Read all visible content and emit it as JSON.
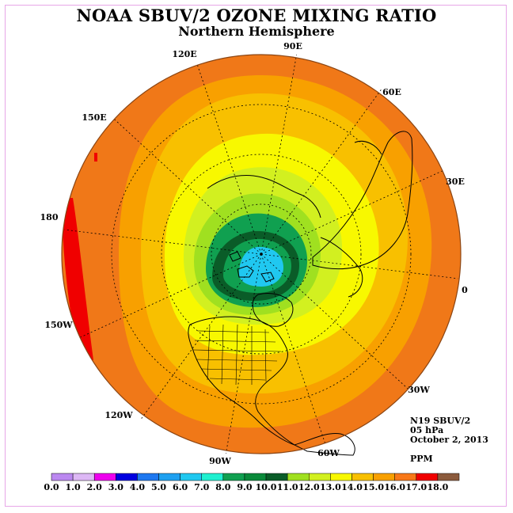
{
  "title": "NOAA SBUV/2 OZONE MIXING RATIO",
  "subtitle": "Northern Hemisphere",
  "info": {
    "instrument": "N19 SBUV/2",
    "level": "05 hPa",
    "date": "October 2, 2013",
    "units": "PPM"
  },
  "longitude_labels": [
    "90E",
    "60E",
    "30E",
    "0",
    "30W",
    "60W",
    "90W",
    "120W",
    "150W",
    "180",
    "150E",
    "120E"
  ],
  "colorbar": {
    "ticks": [
      "0.0",
      "1.0",
      "2.0",
      "3.0",
      "4.0",
      "5.0",
      "6.0",
      "7.0",
      "8.0",
      "9.0",
      "10.0",
      "11.0",
      "12.0",
      "13.0",
      "14.0",
      "15.0",
      "16.0",
      "17.0",
      "18.0"
    ],
    "colors": [
      "#bb88f0",
      "#ddb8f5",
      "#ee00ee",
      "#0000e0",
      "#1e78f0",
      "#1ea0f0",
      "#20c8f0",
      "#20f0d0",
      "#10a050",
      "#0a8a3a",
      "#0a5c28",
      "#a0e020",
      "#d2f020",
      "#f8f800",
      "#f8c000",
      "#f8a000",
      "#f87818",
      "#f00000",
      "#8b5a3c"
    ]
  },
  "map_colors": {
    "outer": "#f07818",
    "band_14_15": "#f8a000",
    "band_13_14": "#f8c000",
    "band_12_13": "#f8f800",
    "band_11_12": "#d2f020",
    "band_10_11": "#a0e020",
    "band_9_10": "#0a5c28",
    "band_8_9": "#10a050",
    "core": "#20c8f0",
    "hot": "#f00000",
    "coast": "#000000"
  }
}
